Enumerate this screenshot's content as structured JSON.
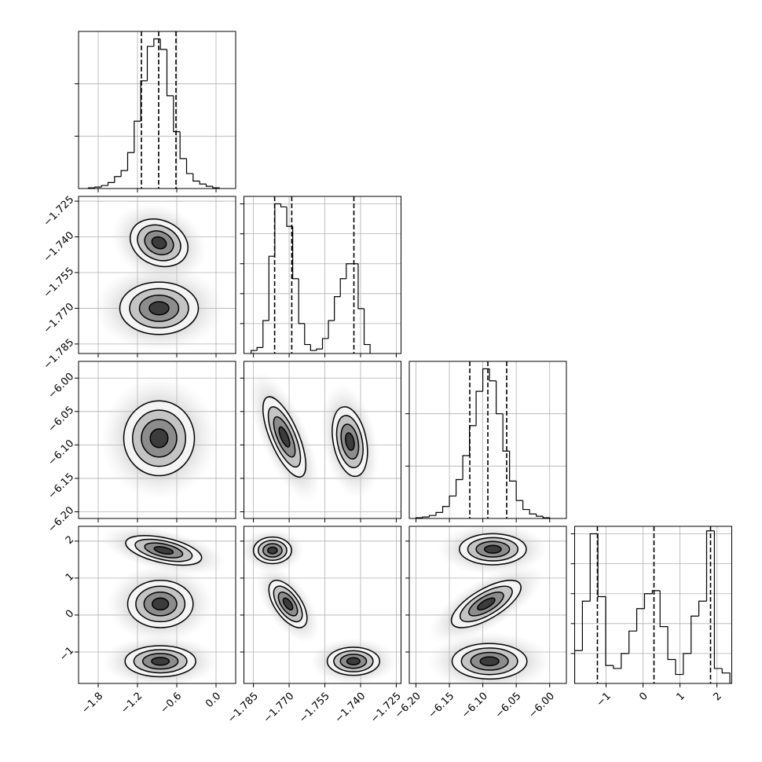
{
  "chart_data": [
    {
      "type": "histogram",
      "bins": [
        -1.95,
        -1.85,
        -1.75,
        -1.65,
        -1.55,
        -1.45,
        -1.35,
        -1.25,
        -1.15,
        -1.05,
        -0.95,
        -0.85,
        -0.75,
        -0.65,
        -0.55,
        -0.45,
        -0.35,
        -0.25,
        -0.15,
        -0.05,
        0.05
      ],
      "values": [
        0.005,
        0.01,
        0.02,
        0.04,
        0.08,
        0.12,
        0.24,
        0.45,
        0.72,
        0.95,
        1.0,
        0.93,
        0.62,
        0.38,
        0.2,
        0.1,
        0.05,
        0.03,
        0.015,
        0.005
      ],
      "quantiles": [
        -1.14,
        -0.876,
        -0.612
      ],
      "xlim": [
        -2.1,
        0.3
      ],
      "xticks": [
        -1.8,
        -1.2,
        -0.6,
        0.0
      ],
      "ylim": [
        0,
        1.05
      ],
      "yticks": [
        0.35,
        0.7
      ],
      "grid": true,
      "color": "#000000"
    },
    {
      "type": "density2d",
      "xlim": [
        -2.1,
        0.3
      ],
      "xticks": [
        -1.8,
        -1.2,
        -0.6,
        0.0
      ],
      "ylim": [
        -1.789,
        -1.723
      ],
      "yticks": [
        {
          "value": -1.725,
          "label": "−1.725"
        },
        {
          "value": -1.74,
          "label": "−1.740"
        },
        {
          "value": -1.755,
          "label": "−1.755"
        },
        {
          "value": -1.77,
          "label": "−1.770"
        },
        {
          "value": -1.785,
          "label": "−1.785"
        }
      ],
      "levels": [
        2,
        1.5,
        1,
        0.5
      ],
      "grid": true,
      "blobs": [
        {
          "x": -0.87,
          "y": -1.7425,
          "sx": 0.22,
          "sy": 0.005,
          "rho": -0.2
        },
        {
          "x": -0.87,
          "y": -1.77,
          "sx": 0.3,
          "sy": 0.0055,
          "rho": 0
        }
      ]
    },
    {
      "type": "histogram",
      "bins": [
        -1.786,
        -1.7835,
        -1.781,
        -1.7785,
        -1.776,
        -1.7735,
        -1.771,
        -1.7685,
        -1.766,
        -1.7635,
        -1.761,
        -1.7585,
        -1.756,
        -1.7535,
        -1.751,
        -1.7485,
        -1.746,
        -1.7435,
        -1.741,
        -1.7385,
        -1.736
      ],
      "values": [
        0.02,
        0.04,
        0.22,
        0.65,
        1.0,
        0.98,
        0.85,
        0.5,
        0.2,
        0.06,
        0.02,
        0.03,
        0.1,
        0.22,
        0.38,
        0.5,
        0.6,
        0.6,
        0.3,
        0.06
      ],
      "quantiles": [
        -1.7761,
        -1.7689,
        -1.7428
      ],
      "xlim": [
        -1.789,
        -1.723
      ],
      "xticks": [
        -1.785,
        -1.77,
        -1.755,
        -1.74,
        -1.725
      ],
      "ylim": [
        0,
        1.05
      ],
      "yticks": [
        0.2,
        0.4,
        0.6,
        0.8,
        1.0
      ],
      "grid": true,
      "color": "#000000"
    },
    {
      "type": "density2d",
      "xlim": [
        -2.1,
        0.3
      ],
      "xticks": [
        -1.8,
        -1.2,
        -0.6,
        0.0
      ],
      "ylim": [
        -6.21,
        -5.975
      ],
      "yticks": [
        {
          "value": -6.0,
          "label": "−6.00"
        },
        {
          "value": -6.05,
          "label": "−6.05"
        },
        {
          "value": -6.1,
          "label": "−6.10"
        },
        {
          "value": -6.15,
          "label": "−6.15"
        },
        {
          "value": -6.2,
          "label": "−6.20"
        }
      ],
      "levels": [
        2,
        1.5,
        1,
        0.5
      ],
      "grid": true,
      "blobs": [
        {
          "x": -0.87,
          "y": -6.09,
          "sx": 0.27,
          "sy": 0.028,
          "rho": 0
        }
      ]
    },
    {
      "type": "density2d",
      "xlim": [
        -1.789,
        -1.723
      ],
      "xticks": [
        -1.785,
        -1.77,
        -1.755,
        -1.74,
        -1.725
      ],
      "ylim": [
        -6.21,
        -5.975
      ],
      "yticks": [
        -6.0,
        -6.05,
        -6.1,
        -6.15,
        -6.2
      ],
      "levels": [
        2,
        1.5,
        1,
        0.5
      ],
      "grid": true,
      "blobs": [
        {
          "x": -1.772,
          "y": -6.088,
          "sx": 0.0045,
          "sy": 0.03,
          "rho": -0.7
        },
        {
          "x": -1.7445,
          "y": -6.095,
          "sx": 0.0037,
          "sy": 0.026,
          "rho": -0.3
        }
      ]
    },
    {
      "type": "histogram",
      "bins": [
        -6.2,
        -6.19,
        -6.18,
        -6.17,
        -6.16,
        -6.15,
        -6.14,
        -6.13,
        -6.12,
        -6.11,
        -6.1,
        -6.09,
        -6.08,
        -6.07,
        -6.06,
        -6.05,
        -6.04,
        -6.03,
        -6.02,
        -6.01,
        -6.0
      ],
      "values": [
        0.005,
        0.01,
        0.02,
        0.04,
        0.08,
        0.15,
        0.26,
        0.42,
        0.62,
        0.85,
        1.0,
        0.92,
        0.7,
        0.45,
        0.25,
        0.12,
        0.06,
        0.03,
        0.015,
        0.005
      ],
      "quantiles": [
        -6.1195,
        -6.0925,
        -6.0643
      ],
      "xlim": [
        -6.21,
        -5.975
      ],
      "xticks": [
        -6.2,
        -6.15,
        -6.1,
        -6.05,
        -6.0
      ],
      "ylim": [
        0,
        1.05
      ],
      "yticks": [
        0.35,
        0.7
      ],
      "grid": true,
      "color": "#000000"
    },
    {
      "type": "density2d",
      "xlim": [
        -2.1,
        0.3
      ],
      "xticks": [
        {
          "value": -1.8,
          "label": "−1.8"
        },
        {
          "value": -1.2,
          "label": "−1.2"
        },
        {
          "value": -0.6,
          "label": "−0.6"
        },
        {
          "value": 0.0,
          "label": "0.0"
        }
      ],
      "ylim": [
        -1.85,
        2.4
      ],
      "yticks": [
        2,
        1,
        0,
        {
          "value": -1,
          "label": "−1"
        }
      ],
      "levels": [
        2,
        1.5,
        1,
        0.5
      ],
      "grid": true,
      "blobs": [
        {
          "x": -0.8,
          "y": 1.75,
          "sx": 0.29,
          "sy": 0.2,
          "rho": -0.5
        },
        {
          "x": -0.85,
          "y": 0.3,
          "sx": 0.25,
          "sy": 0.32,
          "rho": 0
        },
        {
          "x": -0.85,
          "y": -1.25,
          "sx": 0.27,
          "sy": 0.21,
          "rho": 0
        }
      ]
    },
    {
      "type": "density2d",
      "xlim": [
        -1.789,
        -1.723
      ],
      "xticks": [
        {
          "value": -1.785,
          "label": "−1.785"
        },
        {
          "value": -1.77,
          "label": "−1.770"
        },
        {
          "value": -1.755,
          "label": "−1.755"
        },
        {
          "value": -1.74,
          "label": "−1.740"
        },
        {
          "value": -1.725,
          "label": "−1.725"
        }
      ],
      "ylim": [
        -1.85,
        2.4
      ],
      "yticks": [
        2,
        1,
        0,
        -1
      ],
      "levels": [
        2,
        1.5,
        1,
        0.5
      ],
      "grid": true,
      "blobs": [
        {
          "x": -1.777,
          "y": 1.75,
          "sx": 0.004,
          "sy": 0.18,
          "rho": 0
        },
        {
          "x": -1.7705,
          "y": 0.3,
          "sx": 0.004,
          "sy": 0.32,
          "rho": -0.6
        },
        {
          "x": -1.743,
          "y": -1.25,
          "sx": 0.0055,
          "sy": 0.19,
          "rho": 0
        }
      ]
    },
    {
      "type": "density2d",
      "xlim": [
        -6.21,
        -5.975
      ],
      "xticks": [
        {
          "value": -6.2,
          "label": "−6.20"
        },
        {
          "value": -6.15,
          "label": "−6.15"
        },
        {
          "value": -6.1,
          "label": "−6.10"
        },
        {
          "value": -6.05,
          "label": "−6.05"
        },
        {
          "value": -6.0,
          "label": "−6.00"
        }
      ],
      "ylim": [
        -1.85,
        2.4
      ],
      "yticks": [
        2,
        1,
        0,
        -1
      ],
      "levels": [
        2,
        1.5,
        1,
        0.5
      ],
      "grid": true,
      "blobs": [
        {
          "x": -6.085,
          "y": 1.78,
          "sx": 0.025,
          "sy": 0.21,
          "rho": 0
        },
        {
          "x": -6.095,
          "y": 0.3,
          "sx": 0.026,
          "sy": 0.32,
          "rho": 0.7
        },
        {
          "x": -6.09,
          "y": -1.25,
          "sx": 0.028,
          "sy": 0.24,
          "rho": 0
        }
      ]
    },
    {
      "type": "histogram",
      "bins": [
        -1.85,
        -1.64,
        -1.43,
        -1.22,
        -1.01,
        -0.8,
        -0.59,
        -0.38,
        -0.17,
        0.04,
        0.25,
        0.46,
        0.67,
        0.88,
        1.09,
        1.3,
        1.51,
        1.72,
        1.93,
        2.14,
        2.35
      ],
      "values": [
        0.22,
        0.55,
        1.0,
        0.58,
        0.12,
        0.1,
        0.2,
        0.35,
        0.5,
        0.6,
        0.62,
        0.38,
        0.16,
        0.06,
        0.2,
        0.45,
        0.55,
        1.02,
        0.1,
        0.07
      ],
      "quantiles": [
        -1.234,
        0.296,
        1.826
      ],
      "xlim": [
        -1.85,
        2.4
      ],
      "xticks": [
        {
          "value": -1,
          "label": "−1"
        },
        0,
        1,
        2
      ],
      "ylim": [
        0,
        1.05
      ],
      "yticks": [
        0.2,
        0.4,
        0.6,
        0.8,
        1.0
      ],
      "grid": true,
      "color": "#000000"
    }
  ]
}
